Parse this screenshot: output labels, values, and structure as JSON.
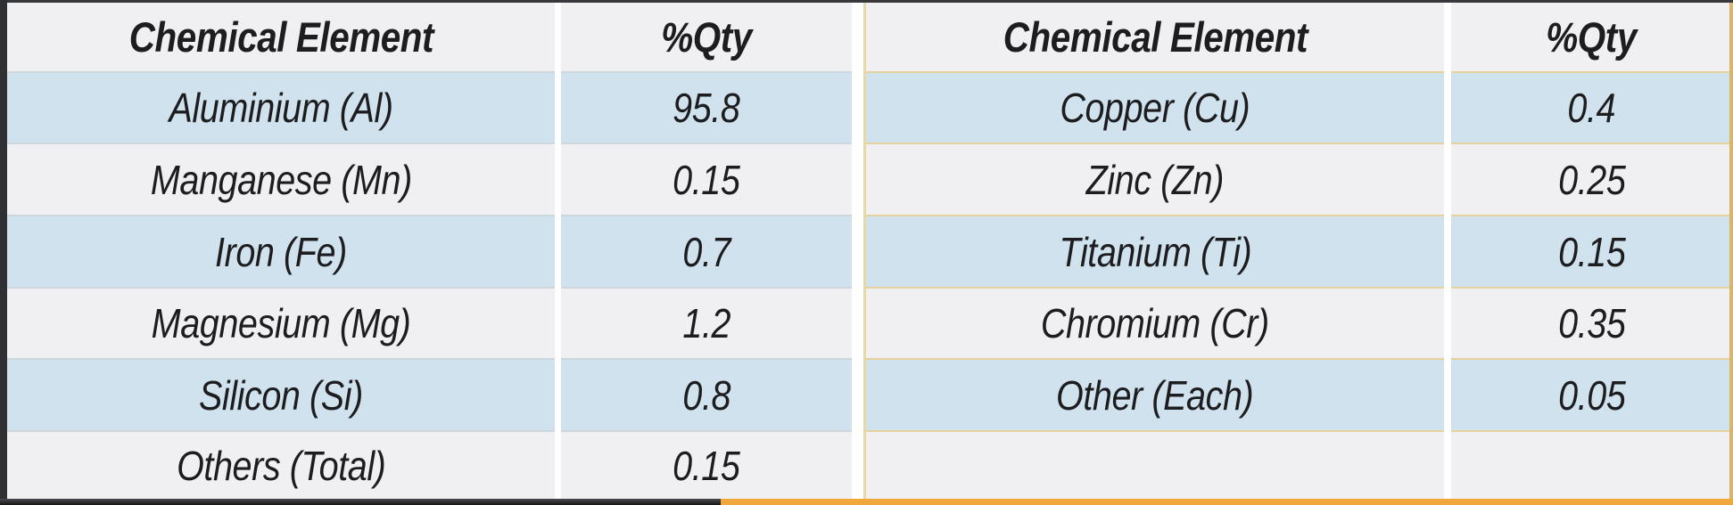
{
  "document": {
    "description": "Alloy chemical composition tables",
    "colors": {
      "row_blue": "#cfe2ed",
      "row_gray": "#f0f0f2",
      "frame_dark": "#2f3033",
      "bottom_bar_dark": "#3c3d41",
      "bottom_bar_orange": "#f0a73c",
      "right_table_separator_tan": "#e4d19c",
      "text": "#1d1d1f"
    }
  },
  "tables": [
    {
      "headers": {
        "element": "Chemical Element",
        "qty": "%Qty"
      },
      "rows": [
        {
          "element": "Aluminium (Al)",
          "qty": "95.8"
        },
        {
          "element": "Manganese (Mn)",
          "qty": "0.15"
        },
        {
          "element": "Iron (Fe)",
          "qty": "0.7"
        },
        {
          "element": "Magnesium (Mg)",
          "qty": "1.2"
        },
        {
          "element": "Silicon (Si)",
          "qty": "0.8"
        },
        {
          "element": "Others (Total)",
          "qty": "0.15"
        }
      ]
    },
    {
      "headers": {
        "element": "Chemical Element",
        "qty": "%Qty"
      },
      "rows": [
        {
          "element": "Copper (Cu)",
          "qty": "0.4"
        },
        {
          "element": "Zinc (Zn)",
          "qty": "0.25"
        },
        {
          "element": "Titanium (Ti)",
          "qty": "0.15"
        },
        {
          "element": "Chromium (Cr)",
          "qty": "0.35"
        },
        {
          "element": "Other (Each)",
          "qty": "0.05"
        },
        {
          "element": "",
          "qty": ""
        }
      ]
    }
  ]
}
